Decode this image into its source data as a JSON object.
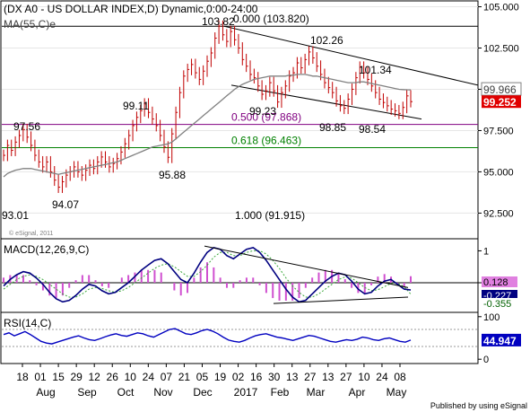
{
  "chart_data": {
    "type": "line",
    "title": "(DX A0 - US DOLLAR INDEX,D) Dynamic,0:00-24:00",
    "subtitle": "MA(55,C)e",
    "credit": "Published by using eSignal",
    "watermark": "© eSignal, 2011",
    "price_pane": {
      "ylim": [
        91.0,
        105.3
      ],
      "y_ticks": [
        92.5,
        95.0,
        97.5,
        100.0,
        102.5,
        105.0
      ],
      "y_tick_labels": [
        "92.500",
        "95.000",
        "97.500",
        "100.000",
        "102.500",
        "105.000"
      ],
      "last_ma": "99.966",
      "last_close": "99.252",
      "fib_levels": [
        {
          "label": "0.000 (103.820)",
          "value": 103.82,
          "color": "#000000"
        },
        {
          "label": "0.500 (97.868)",
          "value": 97.868,
          "color": "#800080"
        },
        {
          "label": "0.618 (96.463)",
          "value": 96.463,
          "color": "#008000"
        },
        {
          "label": "1.000 (91.915)",
          "value": 91.915,
          "color": "#000000"
        }
      ],
      "annotations": [
        "103.82",
        "102.26",
        "101.34",
        "99.23",
        "98.85",
        "98.54",
        "99.11",
        "97.56",
        "95.88",
        "94.07",
        "93.01"
      ],
      "price_closes": [
        96.0,
        96.6,
        96.3,
        96.8,
        97.2,
        97.56,
        97.1,
        96.6,
        96.0,
        95.6,
        95.3,
        95.6,
        95.0,
        94.5,
        94.07,
        94.4,
        94.8,
        95.0,
        95.3,
        95.0,
        94.8,
        95.1,
        95.4,
        95.2,
        95.6,
        95.9,
        95.6,
        95.3,
        95.5,
        95.8,
        96.2,
        96.7,
        97.2,
        97.8,
        98.3,
        98.7,
        99.11,
        98.6,
        98.2,
        97.8,
        97.2,
        96.5,
        95.88,
        97.3,
        98.6,
        99.8,
        100.8,
        101.2,
        101.5,
        101.0,
        100.6,
        101.1,
        101.7,
        102.2,
        103.1,
        103.82,
        103.3,
        102.9,
        103.5,
        103.0,
        102.5,
        101.8,
        101.4,
        100.9,
        100.7,
        100.2,
        99.7,
        99.9,
        100.4,
        99.9,
        99.23,
        99.8,
        100.2,
        100.8,
        101.0,
        101.6,
        101.3,
        101.8,
        102.26,
        101.9,
        101.4,
        100.9,
        100.4,
        100.1,
        99.8,
        99.3,
        99.0,
        98.85,
        99.4,
        100.0,
        100.7,
        101.34,
        101.0,
        100.6,
        100.2,
        99.8,
        99.4,
        99.2,
        99.0,
        98.8,
        98.7,
        98.54,
        98.9,
        99.6,
        99.252
      ],
      "ma55": [
        94.7,
        94.9,
        95.0,
        95.1,
        95.15,
        95.2,
        95.2,
        95.2,
        95.15,
        95.1,
        95.05,
        95.0,
        94.95,
        94.9,
        94.85,
        94.9,
        94.95,
        95.0,
        95.05,
        95.1,
        95.15,
        95.2,
        95.25,
        95.3,
        95.35,
        95.4,
        95.45,
        95.5,
        95.55,
        95.6,
        95.7,
        95.8,
        95.9,
        96.0,
        96.1,
        96.2,
        96.3,
        96.4,
        96.5,
        96.55,
        96.6,
        96.65,
        96.7,
        96.8,
        97.0,
        97.2,
        97.4,
        97.6,
        97.8,
        98.0,
        98.2,
        98.4,
        98.6,
        98.8,
        99.0,
        99.2,
        99.4,
        99.6,
        99.8,
        100.0,
        100.15,
        100.3,
        100.4,
        100.5,
        100.6,
        100.65,
        100.7,
        100.75,
        100.8,
        100.8,
        100.8,
        100.8,
        100.8,
        100.85,
        100.85,
        100.9,
        100.9,
        100.9,
        100.85,
        100.8,
        100.8,
        100.75,
        100.7,
        100.65,
        100.6,
        100.55,
        100.5,
        100.45,
        100.4,
        100.4,
        100.4,
        100.45,
        100.45,
        100.4,
        100.35,
        100.3,
        100.25,
        100.2,
        100.15,
        100.1,
        100.05,
        100.0,
        99.98,
        99.97,
        99.966
      ]
    },
    "macd_pane": {
      "title": "MACD(12,26,9,C)",
      "ylim": [
        -0.9,
        1.35
      ],
      "y_ticks": [
        1,
        0
      ],
      "y_tick_labels": [
        "1",
        "0"
      ],
      "values": {
        "hist": "0.128",
        "macd": "-0.227",
        "signal": "-0.355"
      },
      "macd": [
        -0.1,
        0.1,
        0.25,
        0.35,
        0.3,
        0.15,
        -0.05,
        -0.3,
        -0.5,
        -0.6,
        -0.55,
        -0.4,
        -0.2,
        -0.05,
        -0.1,
        -0.25,
        -0.35,
        -0.3,
        -0.15,
        0.0,
        0.2,
        0.4,
        0.55,
        0.7,
        0.75,
        0.6,
        0.35,
        0.1,
        0.0,
        0.3,
        0.65,
        0.95,
        1.1,
        1.05,
        0.85,
        0.75,
        0.9,
        1.05,
        1.1,
        0.95,
        0.7,
        0.4,
        0.1,
        -0.2,
        -0.45,
        -0.6,
        -0.55,
        -0.35,
        -0.15,
        0.05,
        0.2,
        0.3,
        0.25,
        0.05,
        -0.2,
        -0.35,
        -0.3,
        -0.1,
        0.05,
        0.1,
        -0.05,
        -0.2,
        -0.227
      ],
      "signal": [
        -0.2,
        -0.05,
        0.1,
        0.2,
        0.25,
        0.2,
        0.1,
        -0.05,
        -0.2,
        -0.35,
        -0.45,
        -0.45,
        -0.35,
        -0.2,
        -0.15,
        -0.18,
        -0.25,
        -0.3,
        -0.25,
        -0.15,
        0.0,
        0.15,
        0.3,
        0.45,
        0.55,
        0.6,
        0.5,
        0.35,
        0.2,
        0.2,
        0.35,
        0.55,
        0.8,
        0.95,
        0.95,
        0.85,
        0.85,
        0.95,
        1.0,
        1.0,
        0.9,
        0.7,
        0.45,
        0.15,
        -0.1,
        -0.3,
        -0.45,
        -0.45,
        -0.35,
        -0.2,
        -0.05,
        0.1,
        0.18,
        0.15,
        0.0,
        -0.15,
        -0.25,
        -0.22,
        -0.12,
        -0.02,
        -0.02,
        -0.12,
        -0.355
      ]
    },
    "rsi_pane": {
      "title": "RSI(14,C)",
      "ylim": [
        -8,
        108
      ],
      "y_ticks": [
        100,
        0
      ],
      "y_tick_labels": [
        "100",
        "0"
      ],
      "value": "44.947",
      "rsi": [
        58,
        62,
        55,
        60,
        65,
        58,
        50,
        42,
        38,
        36,
        40,
        44,
        48,
        52,
        55,
        50,
        46,
        44,
        48,
        53,
        57,
        60,
        56,
        54,
        58,
        62,
        60,
        55,
        52,
        58,
        64,
        70,
        72,
        66,
        60,
        58,
        62,
        67,
        70,
        66,
        60,
        52,
        45,
        42,
        40,
        44,
        50,
        55,
        58,
        60,
        56,
        52,
        50,
        47,
        44,
        48,
        52,
        56,
        54,
        50,
        46,
        42,
        40,
        43,
        46,
        44,
        47,
        52,
        50,
        46,
        44,
        48,
        50,
        46,
        42,
        40,
        44.947
      ]
    },
    "x_axis": {
      "day_labels": [
        "18",
        "01",
        "15",
        "29",
        "12",
        "26",
        "10",
        "24",
        "07",
        "21",
        "05",
        "19",
        "02",
        "16",
        "30",
        "13",
        "27",
        "13",
        "27",
        "10",
        "24",
        "08"
      ],
      "month_labels": [
        "Aug",
        "Sep",
        "Oct",
        "Nov",
        "Dec",
        "2017",
        "Feb",
        "Mar",
        "Apr",
        "May"
      ]
    }
  }
}
